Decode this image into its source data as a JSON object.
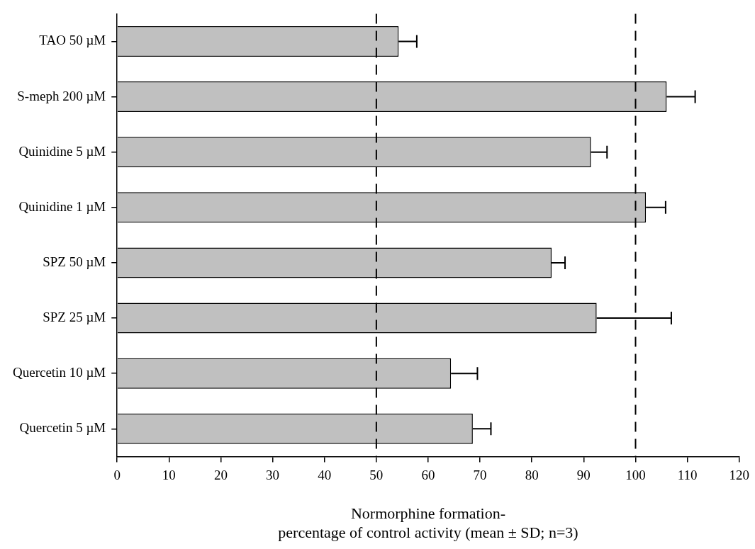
{
  "chart_data": {
    "type": "bar",
    "orientation": "horizontal",
    "xlabel": "Normorphine formation-\npercentage of control activity (mean ± SD; n=3)",
    "categories": [
      "TAO 50 µM",
      "S-meph 200 µM",
      "Quinidine 5 µM",
      "Quinidine 1 µM",
      "SPZ 50 µM",
      "SPZ 25 µM",
      "Quercetin 10 µM",
      "Quercetin 5 µM"
    ],
    "values": [
      54.3,
      106.0,
      91.4,
      102.0,
      83.8,
      92.5,
      64.4,
      68.6
    ],
    "errors": [
      3.5,
      5.5,
      3.1,
      3.8,
      2.6,
      14.4,
      5.1,
      3.5
    ],
    "color": "#c0c0c0",
    "xlim": [
      0,
      120
    ],
    "xticks": [
      0,
      10,
      20,
      30,
      40,
      50,
      60,
      70,
      80,
      90,
      100,
      110,
      120
    ],
    "ref_lines": [
      {
        "axis": "x",
        "value": 50,
        "line_style": "dashed"
      },
      {
        "axis": "x",
        "value": 100,
        "line_style": "dashed"
      }
    ],
    "grid": false,
    "legend": false
  }
}
